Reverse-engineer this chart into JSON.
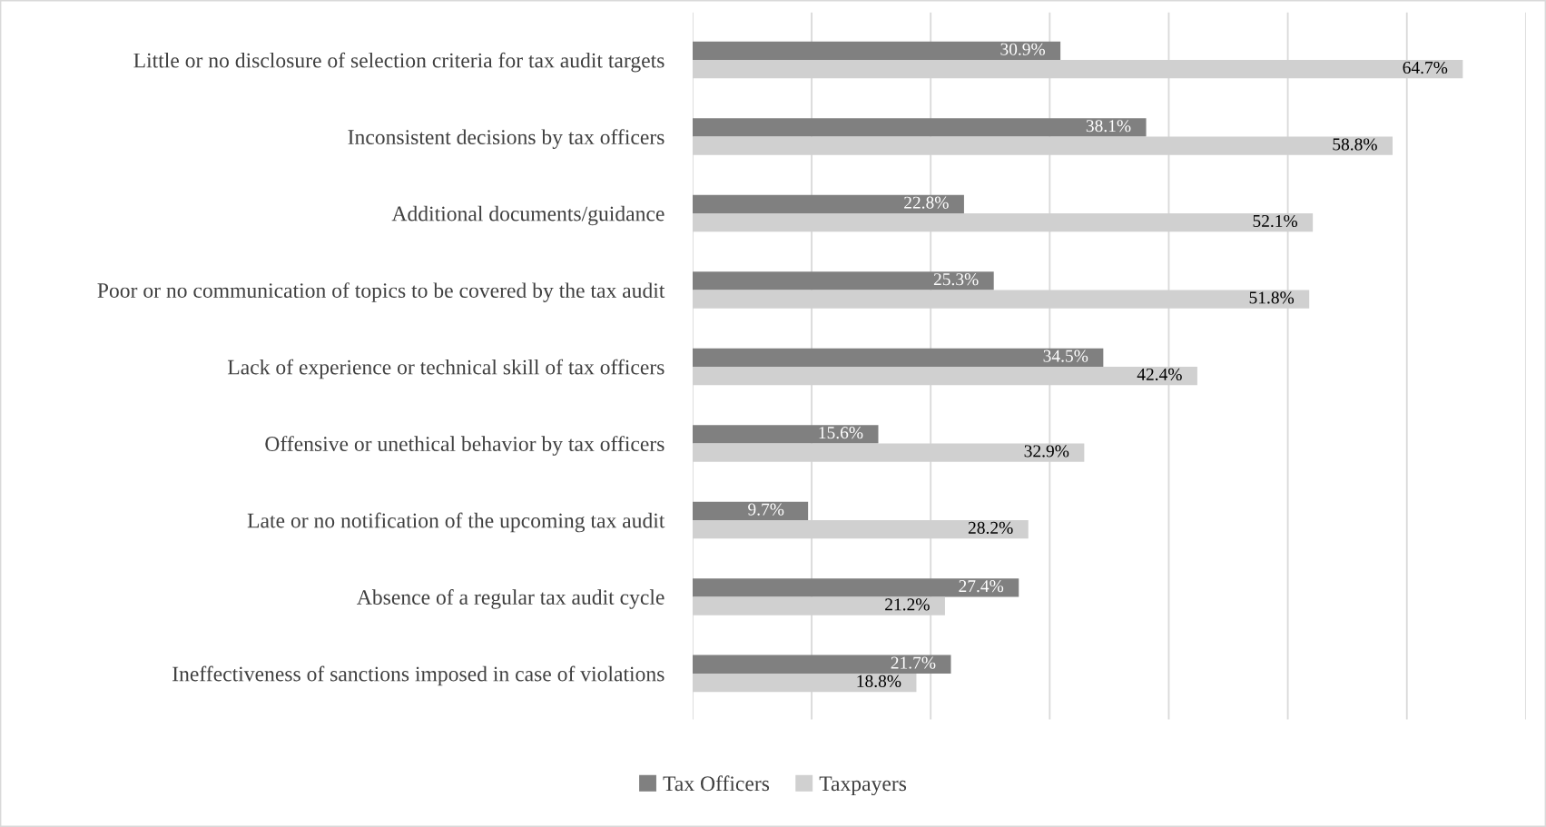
{
  "chart_data": {
    "type": "bar",
    "orientation": "horizontal",
    "categories": [
      "Little or no disclosure of selection criteria for tax audit targets",
      "Inconsistent decisions by tax officers",
      "Additional documents/guidance",
      "Poor or no communication of topics to be covered by the tax audit",
      "Lack of experience or technical skill of tax officers",
      "Offensive or unethical behavior by tax officers",
      "Late or no notification of the upcoming tax audit",
      "Absence of a regular tax audit cycle",
      "Ineffectiveness of sanctions imposed in case of violations"
    ],
    "series": [
      {
        "name": "Tax Officers",
        "color": "#808080",
        "values": [
          30.9,
          38.1,
          22.8,
          25.3,
          34.5,
          15.6,
          9.7,
          27.4,
          21.7
        ],
        "value_labels": [
          "30.9%",
          "38.1%",
          "22.8%",
          "25.3%",
          "34.5%",
          "15.6%",
          "9.7%",
          "27.4%",
          "21.7%"
        ]
      },
      {
        "name": "Taxpayers",
        "color": "#d0d0d0",
        "values": [
          64.7,
          58.8,
          52.1,
          51.8,
          42.4,
          32.9,
          28.2,
          21.2,
          18.8
        ],
        "value_labels": [
          "64.7%",
          "58.8%",
          "52.1%",
          "51.8%",
          "42.4%",
          "32.9%",
          "28.2%",
          "21.2%",
          "18.8%"
        ]
      }
    ],
    "xlim": [
      0,
      70
    ],
    "xticks": [
      {
        "value": 0,
        "label": null
      },
      {
        "value": 10,
        "label": null
      },
      {
        "value": 20,
        "label": null
      },
      {
        "value": 30,
        "label": null
      },
      {
        "value": 40,
        "label": null
      },
      {
        "value": 50,
        "label": null
      },
      {
        "value": 60,
        "label": null
      },
      {
        "value": 70,
        "label": null
      }
    ],
    "tick_labels": "y",
    "grid": "x",
    "legend": "bottom"
  }
}
